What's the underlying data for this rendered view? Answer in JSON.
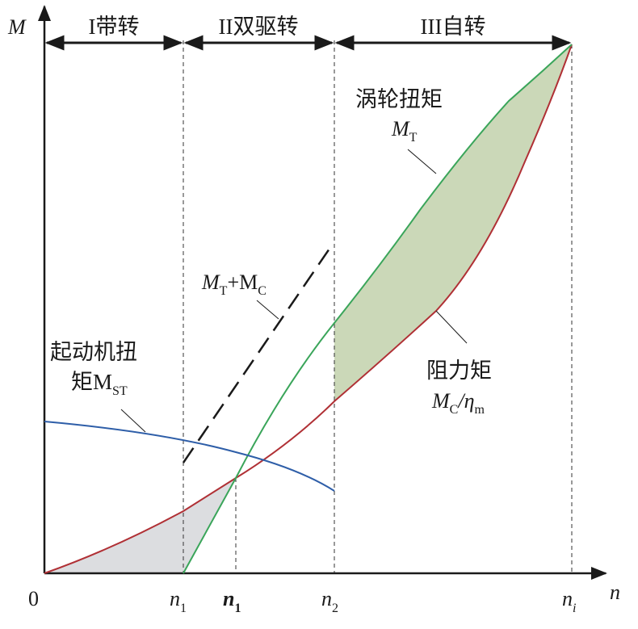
{
  "axes": {
    "y_label": "M",
    "x_label": "n",
    "origin": "0"
  },
  "x_marks": [
    {
      "main": "n",
      "sub": "1"
    },
    {
      "main": "n",
      "sub": "1"
    },
    {
      "main": "n",
      "sub": "2"
    },
    {
      "main": "n",
      "sub": "i"
    }
  ],
  "regions": [
    "I带转",
    "II双驱转",
    "III自转"
  ],
  "labels": {
    "turbine": {
      "name": "涡轮扭矩",
      "symbol": "M",
      "sub": "T"
    },
    "combined": {
      "symbol1": "M",
      "sub1": "T",
      "plus": "+M",
      "sub2": "C"
    },
    "starter": {
      "line1": "起动机扭",
      "line2": "矩M",
      "sub": "ST"
    },
    "resistance": {
      "name": "阻力矩",
      "symbol": "M",
      "sub1": "C",
      "slash": "/η",
      "sub2": "m"
    }
  }
}
